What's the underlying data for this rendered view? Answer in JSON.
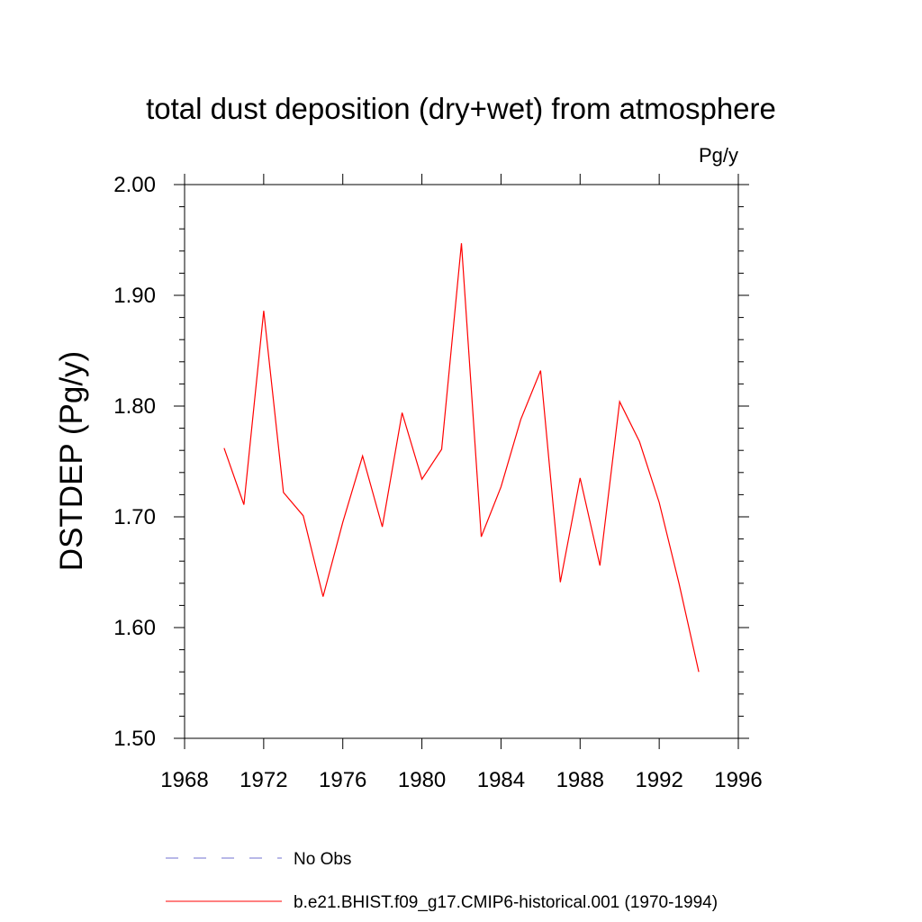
{
  "chart_data": {
    "type": "line",
    "title": "total dust deposition (dry+wet) from atmosphere",
    "units_label": "Pg/y",
    "ylabel": "DSTDEP  (Pg/y)",
    "xlabel": "",
    "xlim": [
      1968,
      1996
    ],
    "ylim": [
      1.5,
      2.0
    ],
    "x_ticks": [
      1968,
      1972,
      1976,
      1980,
      1984,
      1988,
      1992,
      1996
    ],
    "x_tick_labels": [
      "1968",
      "1972",
      "1976",
      "1980",
      "1984",
      "1988",
      "1992",
      "1996"
    ],
    "y_ticks": [
      1.5,
      1.6,
      1.7,
      1.8,
      1.9,
      2.0
    ],
    "y_tick_labels": [
      "1.50",
      "1.60",
      "1.70",
      "1.80",
      "1.90",
      "2.00"
    ],
    "grid": false,
    "legend_position": "bottom",
    "series": [
      {
        "name": "b.e21.BHIST.f09_g17.CMIP6-historical.001 (1970-1994)",
        "color": "#ff0000",
        "style": "solid",
        "x": [
          1970,
          1971,
          1972,
          1973,
          1974,
          1975,
          1976,
          1977,
          1978,
          1979,
          1980,
          1981,
          1982,
          1983,
          1984,
          1985,
          1986,
          1987,
          1988,
          1989,
          1990,
          1991,
          1992,
          1993,
          1994
        ],
        "y": [
          1.762,
          1.711,
          1.886,
          1.722,
          1.701,
          1.628,
          1.695,
          1.755,
          1.691,
          1.794,
          1.734,
          1.761,
          1.947,
          1.682,
          1.727,
          1.788,
          1.832,
          1.641,
          1.735,
          1.656,
          1.804,
          1.768,
          1.713,
          1.64,
          1.56
        ]
      }
    ],
    "legend": [
      {
        "label": "No Obs",
        "color": "#7070d0",
        "style": "dashed"
      },
      {
        "label": "b.e21.BHIST.f09_g17.CMIP6-historical.001 (1970-1994)",
        "color": "#ff0000",
        "style": "solid"
      }
    ]
  }
}
